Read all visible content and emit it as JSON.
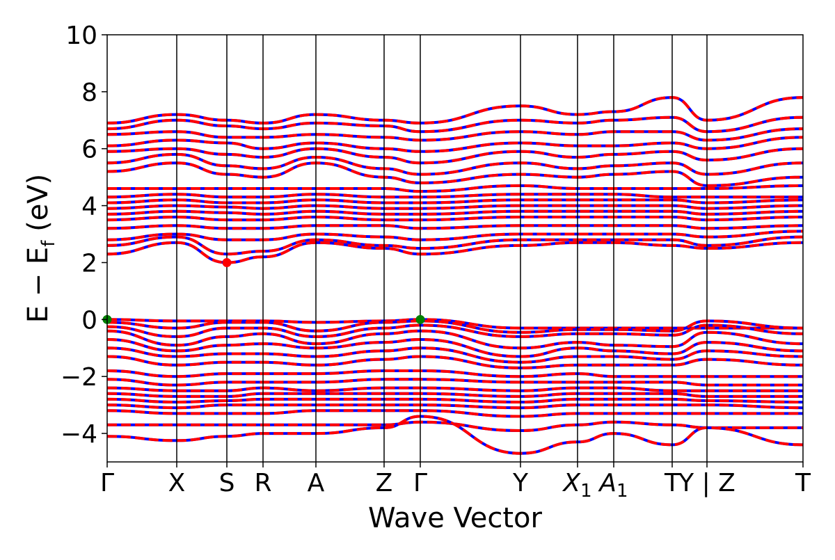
{
  "chart_data": {
    "type": "line",
    "title": "",
    "xlabel": "Wave Vector",
    "ylabel": {
      "main": "E − E",
      "subscript": "f",
      "unit": " (eV)"
    },
    "ylim": [
      -5,
      10
    ],
    "yticks": [
      -4,
      -2,
      0,
      2,
      4,
      6,
      8,
      10
    ],
    "ytick_labels": [
      "−4",
      "−2",
      "0",
      "2",
      "4",
      "6",
      "8",
      "10"
    ],
    "grid": false,
    "legend": "none",
    "kpath": [
      {
        "label": "Γ",
        "sub": "",
        "x": 0
      },
      {
        "label": "X",
        "sub": "",
        "x": 0.5
      },
      {
        "label": "S",
        "sub": "",
        "x": 0.86
      },
      {
        "label": "R",
        "sub": "",
        "x": 1.12
      },
      {
        "label": "A",
        "sub": "",
        "x": 1.5
      },
      {
        "label": "Z",
        "sub": "",
        "x": 1.99
      },
      {
        "label": "Γ",
        "sub": "",
        "x": 2.25
      },
      {
        "label": "Y",
        "sub": "",
        "x": 2.97
      },
      {
        "label": "X",
        "sub": "1",
        "x": 3.38
      },
      {
        "label": "A",
        "sub": "1",
        "x": 3.64
      },
      {
        "label": "T",
        "sub": "",
        "x": 4.06
      },
      {
        "label": "Y | Z",
        "sub": "",
        "x": 4.31
      },
      {
        "label": "T",
        "sub": "",
        "x": 5.0
      }
    ],
    "xlim": [
      0,
      5.0
    ],
    "series_colors": {
      "spin_up": "#ff0000",
      "spin_down": "#0000ff"
    },
    "valence_bands": [
      [
        0.0,
        -0.05,
        -0.05,
        -0.05,
        -0.1,
        -0.05,
        0.0,
        -0.3,
        -0.3,
        -0.3,
        -0.3,
        -0.3,
        -0.3
      ],
      [
        -0.1,
        -0.3,
        -0.1,
        -0.1,
        -0.4,
        -0.1,
        -0.05,
        -0.45,
        -0.35,
        -0.35,
        -0.4,
        -0.05,
        -0.3
      ],
      [
        -0.25,
        -0.6,
        -0.3,
        -0.3,
        -0.6,
        -0.3,
        -0.2,
        -0.6,
        -0.5,
        -0.5,
        -0.55,
        -0.2,
        -0.5
      ],
      [
        -0.4,
        -0.9,
        -0.6,
        -0.5,
        -0.85,
        -0.5,
        -0.4,
        -1.0,
        -0.8,
        -0.9,
        -0.95,
        -0.45,
        -0.85
      ],
      [
        -0.7,
        -1.1,
        -0.9,
        -0.85,
        -1.0,
        -0.8,
        -0.7,
        -1.3,
        -1.0,
        -1.1,
        -1.2,
        -0.8,
        -1.1
      ],
      [
        -1.0,
        -1.3,
        -1.2,
        -1.2,
        -1.3,
        -1.1,
        -1.0,
        -1.5,
        -1.3,
        -1.3,
        -1.4,
        -1.1,
        -1.3
      ],
      [
        -1.3,
        -1.6,
        -1.5,
        -1.5,
        -1.6,
        -1.4,
        -1.3,
        -1.7,
        -1.6,
        -1.6,
        -1.6,
        -1.4,
        -1.6
      ],
      [
        -1.8,
        -2.0,
        -1.9,
        -1.9,
        -1.9,
        -1.8,
        -1.8,
        -2.0,
        -1.9,
        -2.0,
        -2.0,
        -2.0,
        -2.0
      ],
      [
        -2.1,
        -2.3,
        -2.2,
        -2.2,
        -2.2,
        -2.1,
        -2.1,
        -2.2,
        -2.2,
        -2.2,
        -2.2,
        -2.3,
        -2.3
      ],
      [
        -2.4,
        -2.5,
        -2.5,
        -2.4,
        -2.5,
        -2.4,
        -2.4,
        -2.5,
        -2.4,
        -2.4,
        -2.5,
        -2.5,
        -2.5
      ],
      [
        -2.6,
        -2.7,
        -2.7,
        -2.6,
        -2.6,
        -2.6,
        -2.6,
        -2.7,
        -2.6,
        -2.6,
        -2.6,
        -2.7,
        -2.7
      ],
      [
        -2.8,
        -2.9,
        -2.85,
        -2.8,
        -2.8,
        -2.8,
        -2.8,
        -2.9,
        -2.8,
        -2.8,
        -2.8,
        -2.85,
        -2.9
      ],
      [
        -3.0,
        -3.1,
        -3.0,
        -3.0,
        -3.0,
        -3.0,
        -3.0,
        -3.1,
        -3.0,
        -3.0,
        -3.0,
        -3.0,
        -3.1
      ],
      [
        -3.2,
        -3.3,
        -3.3,
        -3.3,
        -3.2,
        -3.2,
        -3.2,
        -3.4,
        -3.3,
        -3.3,
        -3.3,
        -3.3,
        -3.3
      ],
      [
        -3.7,
        -3.7,
        -3.7,
        -3.7,
        -3.7,
        -3.7,
        -3.6,
        -3.9,
        -3.7,
        -3.6,
        -3.7,
        -3.8,
        -3.8
      ],
      [
        -4.1,
        -4.25,
        -4.1,
        -4.0,
        -4.0,
        -3.8,
        -3.4,
        -4.7,
        -4.3,
        -4.0,
        -4.4,
        -3.8,
        -4.4
      ]
    ],
    "conduction_bands": [
      [
        2.3,
        2.7,
        2.0,
        2.2,
        2.7,
        2.5,
        2.3,
        2.6,
        2.7,
        2.7,
        2.6,
        2.5,
        2.7
      ],
      [
        2.6,
        2.9,
        2.3,
        2.4,
        2.8,
        2.6,
        2.5,
        2.8,
        2.8,
        2.8,
        2.8,
        2.6,
        2.9
      ],
      [
        2.8,
        3.0,
        2.8,
        2.8,
        3.0,
        2.9,
        2.8,
        3.0,
        3.0,
        3.0,
        3.0,
        2.9,
        3.1
      ],
      [
        3.2,
        3.3,
        3.2,
        3.2,
        3.3,
        3.3,
        3.2,
        3.3,
        3.3,
        3.3,
        3.3,
        3.2,
        3.3
      ],
      [
        3.5,
        3.6,
        3.5,
        3.5,
        3.6,
        3.5,
        3.5,
        3.6,
        3.6,
        3.6,
        3.6,
        3.5,
        3.6
      ],
      [
        3.7,
        3.8,
        3.75,
        3.7,
        3.8,
        3.7,
        3.7,
        3.8,
        3.8,
        3.8,
        3.8,
        3.7,
        3.8
      ],
      [
        3.9,
        4.0,
        3.95,
        3.9,
        4.0,
        3.9,
        3.9,
        4.0,
        4.0,
        4.0,
        4.0,
        3.9,
        4.0
      ],
      [
        4.1,
        4.2,
        4.1,
        4.1,
        4.2,
        4.1,
        4.1,
        4.2,
        4.2,
        4.2,
        4.2,
        4.1,
        4.2
      ],
      [
        4.3,
        4.4,
        4.3,
        4.3,
        4.4,
        4.3,
        4.3,
        4.4,
        4.4,
        4.4,
        4.3,
        4.3,
        4.3
      ],
      [
        4.6,
        4.6,
        4.6,
        4.6,
        4.6,
        4.6,
        4.5,
        4.7,
        4.6,
        4.6,
        4.6,
        4.6,
        4.7
      ],
      [
        5.2,
        5.5,
        5.1,
        5.0,
        5.5,
        5.0,
        4.8,
        5.1,
        5.0,
        5.1,
        5.2,
        4.7,
        5.0
      ],
      [
        5.5,
        5.8,
        5.4,
        5.3,
        5.7,
        5.3,
        5.1,
        5.5,
        5.3,
        5.4,
        5.5,
        5.1,
        5.5
      ],
      [
        5.9,
        6.0,
        5.8,
        5.7,
        6.0,
        5.7,
        5.5,
        5.9,
        5.7,
        5.8,
        5.9,
        5.6,
        6.0
      ],
      [
        6.1,
        6.3,
        6.2,
        6.0,
        6.2,
        6.0,
        5.9,
        6.2,
        6.1,
        6.1,
        6.2,
        6.0,
        6.4
      ],
      [
        6.5,
        6.6,
        6.4,
        6.4,
        6.5,
        6.4,
        6.3,
        6.6,
        6.5,
        6.6,
        6.6,
        6.3,
        6.7
      ],
      [
        6.7,
        7.0,
        6.8,
        6.7,
        6.9,
        6.8,
        6.6,
        7.0,
        6.9,
        7.0,
        7.1,
        6.6,
        7.1
      ],
      [
        6.9,
        7.2,
        7.0,
        6.9,
        7.2,
        7.0,
        6.9,
        7.5,
        7.2,
        7.3,
        7.8,
        7.0,
        7.8
      ]
    ],
    "markers": [
      {
        "name": "vbm",
        "x": 0,
        "y": 0.0,
        "color": "#008000"
      },
      {
        "name": "vbm",
        "x": 2.25,
        "y": 0.0,
        "color": "#008000"
      },
      {
        "name": "cbm",
        "x": 0.86,
        "y": 2.0,
        "color": "#ff0000"
      }
    ]
  }
}
